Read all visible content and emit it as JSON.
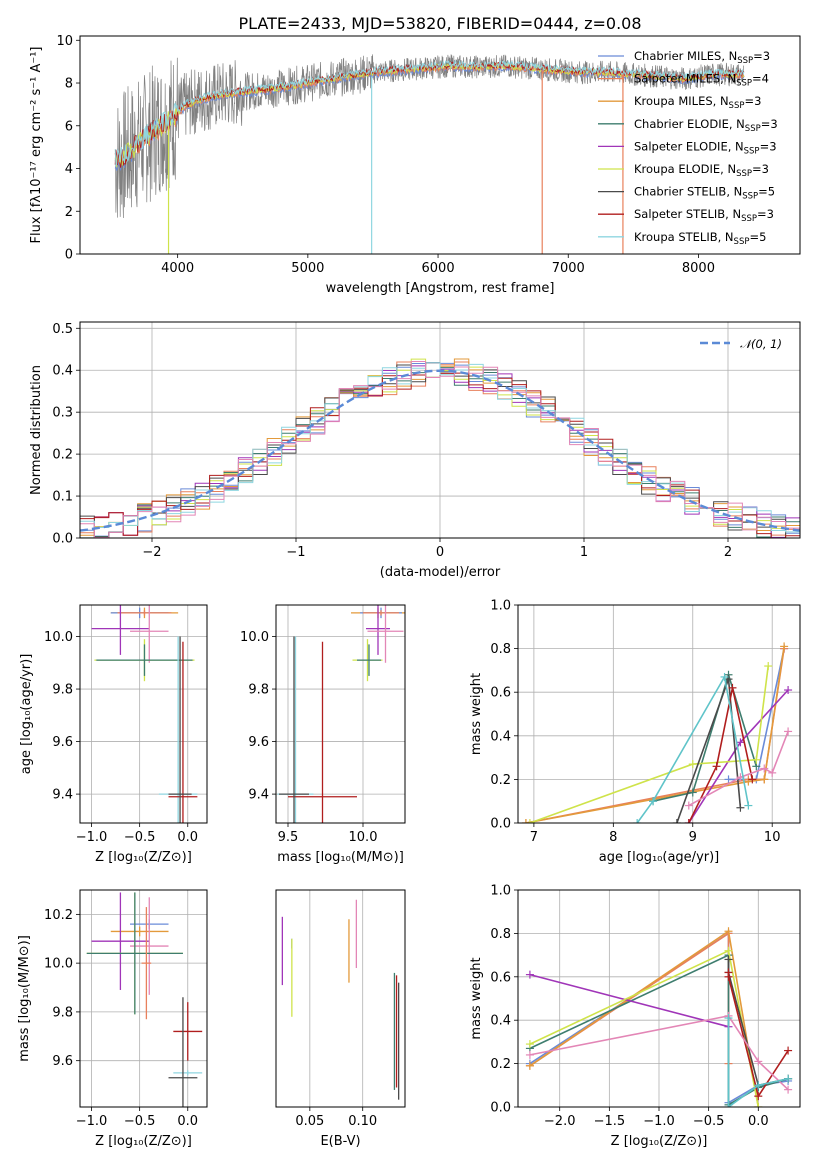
{
  "figure": {
    "title": "PLATE=2433, MJD=53820, FIBERID=0444, z=0.08"
  },
  "colors": {
    "Chabrier MILES": "#6a8bd8",
    "Salpeter MILES": "#e8805c",
    "Kroupa MILES": "#e39a3b",
    "Chabrier ELODIE": "#3e7d6e",
    "Salpeter ELODIE": "#a035b8",
    "Kroupa ELODIE": "#cfe34a",
    "Chabrier STELIB": "#4a4a4a",
    "Salpeter STELIB": "#b01e1e",
    "Kroupa STELIB": "#8fd6e0",
    "data": "#808080",
    "pink": "#e386b6",
    "teal": "#5fc4c9",
    "gaussian": "#5b8ad6"
  },
  "chart_data": [
    {
      "id": "spectrum",
      "type": "line",
      "title": "PLATE=2433, MJD=53820, FIBERID=0444, z=0.08",
      "xlabel": "wavelength [Angstrom, rest frame]",
      "ylabel": "Flux [fλ10⁻¹⁷ erg cm⁻² s⁻¹ A⁻¹]",
      "xlim": [
        3250,
        8780
      ],
      "ylim": [
        0,
        10.2
      ],
      "xticks": [
        4000,
        5000,
        6000,
        7000,
        8000
      ],
      "yticks": [
        0,
        2,
        4,
        6,
        8,
        10
      ],
      "continuum": {
        "x": [
          3550,
          3650,
          3750,
          3850,
          3950,
          4050,
          4150,
          4300,
          4500,
          4700,
          4900,
          5100,
          5300,
          5500,
          5700,
          5900,
          6100,
          6300,
          6500,
          6700,
          6900,
          7100,
          7300,
          7500,
          7700,
          7900,
          8100,
          8300
        ],
        "y": [
          4.4,
          4.9,
          5.4,
          5.9,
          6.3,
          6.9,
          7.2,
          7.4,
          7.6,
          7.7,
          7.9,
          8.1,
          8.3,
          8.5,
          8.6,
          8.7,
          8.8,
          8.75,
          8.8,
          8.7,
          8.6,
          8.5,
          8.5,
          8.4,
          8.3,
          8.2,
          8.4,
          8.4
        ]
      },
      "legend": [
        {
          "label": "Chabrier MILES, N",
          "sub": "SSP",
          "tail": "=3",
          "color": "#6a8bd8"
        },
        {
          "label": "Salpeter MILES, N",
          "sub": "SSP",
          "tail": "=4",
          "color": "#e8805c"
        },
        {
          "label": "Kroupa MILES, N",
          "sub": "SSP",
          "tail": "=3",
          "color": "#e39a3b"
        },
        {
          "label": "Chabrier ELODIE, N",
          "sub": "SSP",
          "tail": "=3",
          "color": "#3e7d6e"
        },
        {
          "label": "Salpeter ELODIE, N",
          "sub": "SSP",
          "tail": "=3",
          "color": "#a035b8"
        },
        {
          "label": "Kroupa ELODIE, N",
          "sub": "SSP",
          "tail": "=3",
          "color": "#cfe34a"
        },
        {
          "label": "Chabrier STELIB, N",
          "sub": "SSP",
          "tail": "=5",
          "color": "#4a4a4a"
        },
        {
          "label": "Salpeter STELIB, N",
          "sub": "SSP",
          "tail": "=3",
          "color": "#b01e1e"
        },
        {
          "label": "Kroupa STELIB, N",
          "sub": "SSP",
          "tail": "=5",
          "color": "#8fd6e0"
        }
      ],
      "spikes": [
        {
          "x": 3930,
          "y0": 0,
          "y1": 6.0,
          "color": "#cfe34a"
        },
        {
          "x": 5490,
          "y0": 0,
          "y1": 8.3,
          "color": "#8fd6e0"
        },
        {
          "x": 6800,
          "y0": 0,
          "y1": 8.6,
          "color": "#e8805c"
        },
        {
          "x": 7420,
          "y0": 0,
          "y1": 8.4,
          "color": "#e8805c"
        }
      ]
    },
    {
      "id": "residuals",
      "type": "line",
      "xlabel": "(data-model)/error",
      "ylabel": "Normed distribution",
      "xlim": [
        -2.5,
        2.5
      ],
      "ylim": [
        0,
        0.515
      ],
      "xticks": [
        -2,
        -1,
        0,
        1,
        2
      ],
      "yticks": [
        0.0,
        0.1,
        0.2,
        0.3,
        0.4,
        0.5
      ],
      "gaussian_label": "𝒩(0, 1)",
      "bin_width": 0.1
    },
    {
      "id": "age_vs_Z",
      "type": "scatter",
      "xlabel": "Z [log₁₀(Z/Z⊙)]",
      "ylabel": "age  [log₁₀(age/yr)]",
      "xlim": [
        -1.12,
        0.2
      ],
      "ylim": [
        9.29,
        10.12
      ],
      "xticks": [
        -1.0,
        -0.5,
        0.0
      ],
      "yticks": [
        9.4,
        9.6,
        9.8,
        10.0
      ],
      "points": [
        {
          "x": -0.45,
          "y": 10.09,
          "xerr": 0.35,
          "yerr": 0.02,
          "color": "#e39a3b"
        },
        {
          "x": -0.5,
          "y": 10.09,
          "xerr": 0.3,
          "yerr": 0.02,
          "color": "#6a8bd8"
        },
        {
          "x": -0.45,
          "y": 10.09,
          "xerr": 0.28,
          "yerr": 0.01,
          "color": "#e8805c"
        },
        {
          "x": -0.7,
          "y": 10.03,
          "xerr": 0.3,
          "yerr": 0.1,
          "color": "#a035b8"
        },
        {
          "x": -0.4,
          "y": 10.02,
          "xerr": 0.2,
          "yerr": 0.12,
          "color": "#e386b6"
        },
        {
          "x": -0.45,
          "y": 9.91,
          "xerr": 0.52,
          "yerr": 0.08,
          "color": "#cfe34a"
        },
        {
          "x": -0.45,
          "y": 9.91,
          "xerr": 0.5,
          "yerr": 0.06,
          "color": "#3e7d6e"
        },
        {
          "x": -0.1,
          "y": 9.4,
          "xerr": 0.2,
          "yerr": 0.6,
          "color": "#8fd6e0"
        },
        {
          "x": -0.05,
          "y": 9.39,
          "xerr": 0.15,
          "yerr": 0.59,
          "color": "#b01e1e"
        },
        {
          "x": -0.08,
          "y": 9.4,
          "xerr": 0.12,
          "yerr": 0.6,
          "color": "#4a4a4a"
        }
      ]
    },
    {
      "id": "age_vs_mass",
      "type": "scatter",
      "xlabel": "mass [log₁₀(M/M⊙)]",
      "ylabel": "",
      "xlim": [
        9.42,
        10.28
      ],
      "ylim": [
        9.29,
        10.12
      ],
      "xticks": [
        9.5,
        10.0
      ],
      "yticks": [
        9.4,
        9.6,
        9.8,
        10.0
      ],
      "points": [
        {
          "x": 10.1,
          "y": 10.09,
          "xerr": 0.18,
          "yerr": 0.02,
          "color": "#e39a3b"
        },
        {
          "x": 10.12,
          "y": 10.09,
          "xerr": 0.14,
          "yerr": 0.02,
          "color": "#6a8bd8"
        },
        {
          "x": 10.12,
          "y": 10.09,
          "xerr": 0.12,
          "yerr": 0.01,
          "color": "#e8805c"
        },
        {
          "x": 10.1,
          "y": 10.03,
          "xerr": 0.08,
          "yerr": 0.1,
          "color": "#a035b8"
        },
        {
          "x": 10.15,
          "y": 10.02,
          "xerr": 0.12,
          "yerr": 0.12,
          "color": "#e386b6"
        },
        {
          "x": 10.03,
          "y": 9.91,
          "xerr": 0.1,
          "yerr": 0.08,
          "color": "#cfe34a"
        },
        {
          "x": 10.04,
          "y": 9.91,
          "xerr": 0.08,
          "yerr": 0.06,
          "color": "#3e7d6e"
        },
        {
          "x": 9.55,
          "y": 9.4,
          "xerr": 0.12,
          "yerr": 0.6,
          "color": "#8fd6e0"
        },
        {
          "x": 9.73,
          "y": 9.39,
          "xerr": 0.23,
          "yerr": 0.59,
          "color": "#b01e1e"
        },
        {
          "x": 9.54,
          "y": 9.4,
          "xerr": 0.1,
          "yerr": 0.6,
          "color": "#4a4a4a"
        }
      ]
    },
    {
      "id": "weight_vs_age",
      "type": "line",
      "xlabel": "age  [log₁₀(age/yr)]",
      "ylabel": "mass weight",
      "xlim": [
        6.8,
        10.35
      ],
      "ylim": [
        0,
        1.0
      ],
      "xticks": [
        7,
        8,
        9,
        10
      ],
      "yticks": [
        0.0,
        0.2,
        0.4,
        0.6,
        0.8,
        1.0
      ],
      "series": [
        {
          "color": "#6a8bd8",
          "x": [
            9.45,
            9.8,
            10.15
          ],
          "y": [
            0.2,
            0.2,
            0.8
          ]
        },
        {
          "color": "#e8805c",
          "x": [
            6.9,
            9.7,
            9.9,
            10.15
          ],
          "y": [
            0.0,
            0.2,
            0.2,
            0.8
          ]
        },
        {
          "color": "#e39a3b",
          "x": [
            6.9,
            9.7,
            9.9,
            10.15
          ],
          "y": [
            0.0,
            0.19,
            0.2,
            0.81
          ]
        },
        {
          "color": "#3e7d6e",
          "x": [
            8.5,
            9.0,
            9.45,
            9.8
          ],
          "y": [
            0.1,
            0.14,
            0.68,
            0.26
          ]
        },
        {
          "color": "#a035b8",
          "x": [
            8.95,
            9.6,
            10.2
          ],
          "y": [
            0.0,
            0.37,
            0.61
          ]
        },
        {
          "color": "#cfe34a",
          "x": [
            6.95,
            9.0,
            9.8,
            9.95
          ],
          "y": [
            0.0,
            0.27,
            0.29,
            0.72
          ]
        },
        {
          "color": "#4a4a4a",
          "x": [
            8.8,
            9.45,
            9.6
          ],
          "y": [
            0.0,
            0.66,
            0.07
          ]
        },
        {
          "color": "#b01e1e",
          "x": [
            8.95,
            9.3,
            9.5,
            9.75
          ],
          "y": [
            0.0,
            0.26,
            0.62,
            0.2
          ]
        },
        {
          "color": "#e386b6",
          "x": [
            8.95,
            9.6,
            9.9,
            10.0,
            10.2
          ],
          "y": [
            0.08,
            0.21,
            0.25,
            0.23,
            0.42
          ]
        },
        {
          "color": "#5fc4c9",
          "x": [
            8.3,
            8.5,
            9.4,
            9.7
          ],
          "y": [
            0.0,
            0.1,
            0.67,
            0.08
          ]
        }
      ]
    },
    {
      "id": "mass_vs_Z",
      "type": "scatter",
      "xlabel": "Z [log₁₀(Z/Z⊙)]",
      "ylabel": "mass [log₁₀(M/M⊙)]",
      "xlim": [
        -1.12,
        0.2
      ],
      "ylim": [
        9.41,
        10.3
      ],
      "xticks": [
        -1.0,
        -0.5,
        0.0
      ],
      "yticks": [
        9.6,
        9.8,
        10.0,
        10.2
      ],
      "points": [
        {
          "x": -0.4,
          "y": 10.16,
          "xerr": 0.2,
          "yerr": 0.02,
          "color": "#6a8bd8"
        },
        {
          "x": -0.5,
          "y": 10.13,
          "xerr": 0.3,
          "yerr": 0.02,
          "color": "#e39a3b"
        },
        {
          "x": -0.7,
          "y": 10.09,
          "xerr": 0.3,
          "yerr": 0.2,
          "color": "#a035b8"
        },
        {
          "x": -0.4,
          "y": 10.07,
          "xerr": 0.2,
          "yerr": 0.2,
          "color": "#e386b6"
        },
        {
          "x": -0.55,
          "y": 10.04,
          "xerr": 0.5,
          "yerr": 0.25,
          "color": "#cfe34a"
        },
        {
          "x": -0.55,
          "y": 10.04,
          "xerr": 0.5,
          "yerr": 0.25,
          "color": "#3e7d6e"
        },
        {
          "x": -0.43,
          "y": 10.0,
          "xerr": 0.05,
          "yerr": 0.23,
          "color": "#e8805c"
        },
        {
          "x": 0.0,
          "y": 9.72,
          "xerr": 0.15,
          "yerr": 0.12,
          "color": "#b01e1e"
        },
        {
          "x": 0.0,
          "y": 9.55,
          "xerr": 0.15,
          "yerr": 0.01,
          "color": "#8fd6e0"
        },
        {
          "x": -0.05,
          "y": 9.53,
          "xerr": 0.15,
          "yerr": 0.33,
          "color": "#4a4a4a"
        }
      ]
    },
    {
      "id": "mass_vs_EBV",
      "type": "scatter",
      "xlabel": "E(B-V)",
      "ylabel": "",
      "xlim": [
        0.018,
        0.14
      ],
      "ylim": [
        9.41,
        10.3
      ],
      "xticks": [
        0.05,
        0.1
      ],
      "points": [
        {
          "x": 0.024,
          "y": 10.05,
          "yerr": 0.14,
          "color": "#a035b8"
        },
        {
          "x": 0.033,
          "y": 10.08,
          "yerr": 0.02,
          "color": "#6a8bd8"
        },
        {
          "x": 0.033,
          "y": 9.94,
          "yerr": 0.16,
          "color": "#cfe34a"
        },
        {
          "x": 0.087,
          "y": 10.05,
          "yerr": 0.13,
          "color": "#e39a3b"
        },
        {
          "x": 0.094,
          "y": 10.12,
          "yerr": 0.14,
          "color": "#e386b6"
        },
        {
          "x": 0.13,
          "y": 9.72,
          "yerr": 0.24,
          "color": "#3e7d6e"
        },
        {
          "x": 0.132,
          "y": 9.72,
          "yerr": 0.23,
          "color": "#b01e1e"
        },
        {
          "x": 0.134,
          "y": 9.68,
          "yerr": 0.24,
          "color": "#4a4a4a"
        }
      ]
    },
    {
      "id": "weight_vs_Z",
      "type": "line",
      "xlabel": "Z [log₁₀(Z/Z⊙)]",
      "ylabel": "mass weight",
      "xlim": [
        -2.42,
        0.42
      ],
      "ylim": [
        0,
        1.0
      ],
      "xticks": [
        -2.0,
        -1.5,
        -1.0,
        -0.5,
        0.0
      ],
      "yticks": [
        0.0,
        0.2,
        0.4,
        0.6,
        0.8,
        1.0
      ],
      "series": [
        {
          "color": "#6a8bd8",
          "x": [
            -2.3,
            -0.3,
            -0.3,
            0.0,
            0.3
          ],
          "y": [
            0.2,
            0.8,
            0.02,
            0.1,
            0.12
          ]
        },
        {
          "color": "#e8805c",
          "x": [
            -2.3,
            -0.3,
            -0.3
          ],
          "y": [
            0.19,
            0.8,
            0.2
          ]
        },
        {
          "color": "#e39a3b",
          "x": [
            -2.3,
            -0.3,
            0.0
          ],
          "y": [
            0.19,
            0.81,
            0.0
          ]
        },
        {
          "color": "#3e7d6e",
          "x": [
            -2.3,
            -0.3,
            -0.3,
            0.0,
            0.3
          ],
          "y": [
            0.27,
            0.7,
            0.01,
            0.09,
            0.13
          ]
        },
        {
          "color": "#a035b8",
          "x": [
            -2.3,
            -0.3
          ],
          "y": [
            0.61,
            0.37
          ]
        },
        {
          "color": "#cfe34a",
          "x": [
            -2.3,
            -0.3,
            0.0
          ],
          "y": [
            0.29,
            0.72,
            0.0
          ]
        },
        {
          "color": "#4a4a4a",
          "x": [
            -0.3,
            -0.3,
            0.0,
            0.3
          ],
          "y": [
            0.68,
            0.62,
            0.1,
            0.13
          ]
        },
        {
          "color": "#b01e1e",
          "x": [
            -0.3,
            -0.3,
            0.0,
            0.3
          ],
          "y": [
            0.62,
            0.6,
            0.05,
            0.26
          ]
        },
        {
          "color": "#e386b6",
          "x": [
            -2.3,
            -0.3,
            0.0,
            0.3
          ],
          "y": [
            0.24,
            0.42,
            0.21,
            0.08
          ]
        },
        {
          "color": "#5fc4c9",
          "x": [
            -0.3,
            -0.3,
            0.0,
            0.3
          ],
          "y": [
            0.41,
            0.0,
            0.1,
            0.13
          ]
        }
      ]
    }
  ]
}
